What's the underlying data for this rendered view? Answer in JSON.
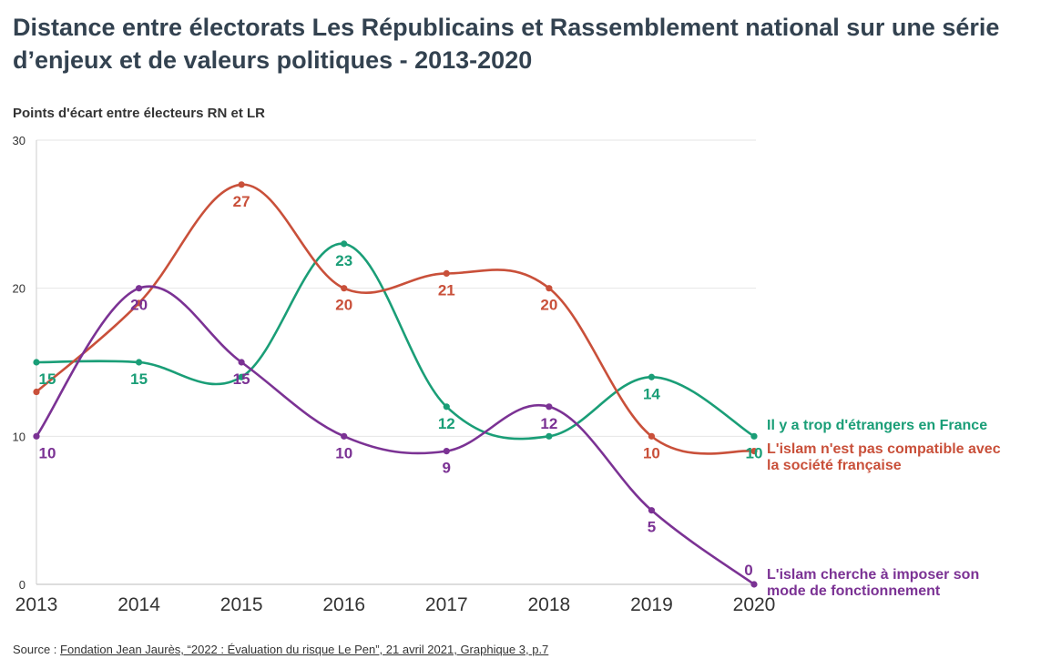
{
  "title": "Distance entre électorats Les Républicains et Rassemblement national sur une série d’enjeux et de valeurs politiques - 2013-2020",
  "source": {
    "prefix": "Source :",
    "link_text": "Fondation Jean Jaurès, “2022 : Évaluation du risque Le Pen”, 21 avril 2021, Graphique 3, p.7"
  },
  "chart_data": {
    "type": "line",
    "title": "Distance entre électorats Les Républicains et Rassemblement national sur une série d’enjeux et de valeurs politiques - 2013-2020",
    "ylabel": "Points d'écart entre électeurs RN et LR",
    "xlabel": "",
    "x": [
      2013,
      2014,
      2015,
      2016,
      2017,
      2018,
      2019,
      2020
    ],
    "ylim": [
      0,
      30
    ],
    "yticks": [
      0,
      10,
      20,
      30
    ],
    "grid": true,
    "series": [
      {
        "name_lines": [
          "Il y a trop d'étrangers en France"
        ],
        "color": "#1a9e77",
        "values": [
          15,
          15,
          14,
          23,
          12,
          10,
          14,
          10
        ],
        "labels": [
          "15",
          "15",
          "",
          "23",
          "12",
          "",
          "14",
          "10"
        ]
      },
      {
        "name_lines": [
          "L'islam n'est pas compatible avec",
          "la société française"
        ],
        "color": "#c9503a",
        "values": [
          13,
          19,
          27,
          20,
          21,
          20,
          10,
          9
        ],
        "labels": [
          "",
          "",
          "27",
          "20",
          "21",
          "20",
          "10",
          ""
        ]
      },
      {
        "name_lines": [
          "L'islam cherche à imposer son",
          "mode de fonctionnement"
        ],
        "color": "#7b3294",
        "values": [
          10,
          20,
          15,
          10,
          9,
          12,
          5,
          0
        ],
        "labels": [
          "10",
          "20",
          "15",
          "10",
          "9",
          "12",
          "5",
          "0"
        ]
      }
    ]
  }
}
